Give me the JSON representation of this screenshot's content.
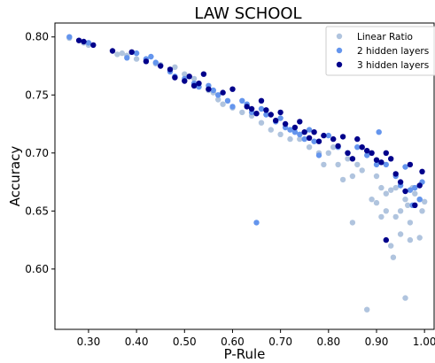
{
  "chart_data": {
    "type": "scatter",
    "title": "LAW SCHOOL",
    "xlabel": "P-Rule",
    "ylabel": "Accuracy",
    "xlim": [
      0.23,
      1.02
    ],
    "ylim": [
      0.548,
      0.812
    ],
    "xticks": [
      0.3,
      0.4,
      0.5,
      0.6,
      0.7,
      0.8,
      0.9,
      1.0
    ],
    "yticks": [
      0.6,
      0.65,
      0.7,
      0.75,
      0.8
    ],
    "grid": false,
    "legend_position": "top-right",
    "series": [
      {
        "name": "Linear Ratio",
        "color": "#b0c4de",
        "points": [
          [
            0.26,
            0.799
          ],
          [
            0.29,
            0.795
          ],
          [
            0.3,
            0.793
          ],
          [
            0.36,
            0.785
          ],
          [
            0.37,
            0.786
          ],
          [
            0.38,
            0.784
          ],
          [
            0.4,
            0.781
          ],
          [
            0.42,
            0.779
          ],
          [
            0.44,
            0.777
          ],
          [
            0.45,
            0.776
          ],
          [
            0.48,
            0.774
          ],
          [
            0.5,
            0.768
          ],
          [
            0.52,
            0.764
          ],
          [
            0.55,
            0.754
          ],
          [
            0.56,
            0.752
          ],
          [
            0.57,
            0.746
          ],
          [
            0.58,
            0.742
          ],
          [
            0.6,
            0.739
          ],
          [
            0.62,
            0.735
          ],
          [
            0.64,
            0.732
          ],
          [
            0.66,
            0.726
          ],
          [
            0.68,
            0.72
          ],
          [
            0.7,
            0.716
          ],
          [
            0.72,
            0.712
          ],
          [
            0.74,
            0.712
          ],
          [
            0.76,
            0.705
          ],
          [
            0.78,
            0.7
          ],
          [
            0.79,
            0.69
          ],
          [
            0.8,
            0.7
          ],
          [
            0.81,
            0.705
          ],
          [
            0.82,
            0.69
          ],
          [
            0.83,
            0.677
          ],
          [
            0.84,
            0.695
          ],
          [
            0.85,
            0.68
          ],
          [
            0.85,
            0.64
          ],
          [
            0.86,
            0.69
          ],
          [
            0.87,
            0.685
          ],
          [
            0.88,
            0.565
          ],
          [
            0.89,
            0.66
          ],
          [
            0.9,
            0.657
          ],
          [
            0.9,
            0.68
          ],
          [
            0.91,
            0.645
          ],
          [
            0.91,
            0.67
          ],
          [
            0.92,
            0.665
          ],
          [
            0.92,
            0.65
          ],
          [
            0.93,
            0.62
          ],
          [
            0.93,
            0.668
          ],
          [
            0.935,
            0.61
          ],
          [
            0.94,
            0.67
          ],
          [
            0.94,
            0.645
          ],
          [
            0.95,
            0.63
          ],
          [
            0.95,
            0.65
          ],
          [
            0.96,
            0.66
          ],
          [
            0.96,
            0.575
          ],
          [
            0.965,
            0.655
          ],
          [
            0.97,
            0.625
          ],
          [
            0.97,
            0.64
          ],
          [
            0.975,
            0.67
          ],
          [
            0.98,
            0.665
          ],
          [
            0.98,
            0.655
          ],
          [
            0.99,
            0.66
          ],
          [
            0.99,
            0.627
          ],
          [
            0.995,
            0.65
          ],
          [
            1.0,
            0.658
          ]
        ]
      },
      {
        "name": "2 hidden layers",
        "color": "#6495ed",
        "points": [
          [
            0.26,
            0.8
          ],
          [
            0.3,
            0.795
          ],
          [
            0.38,
            0.782
          ],
          [
            0.4,
            0.786
          ],
          [
            0.42,
            0.781
          ],
          [
            0.43,
            0.783
          ],
          [
            0.44,
            0.778
          ],
          [
            0.47,
            0.77
          ],
          [
            0.48,
            0.766
          ],
          [
            0.5,
            0.764
          ],
          [
            0.52,
            0.76
          ],
          [
            0.53,
            0.757
          ],
          [
            0.55,
            0.758
          ],
          [
            0.56,
            0.754
          ],
          [
            0.57,
            0.75
          ],
          [
            0.59,
            0.745
          ],
          [
            0.6,
            0.74
          ],
          [
            0.62,
            0.745
          ],
          [
            0.63,
            0.742
          ],
          [
            0.64,
            0.735
          ],
          [
            0.65,
            0.64
          ],
          [
            0.66,
            0.738
          ],
          [
            0.67,
            0.733
          ],
          [
            0.69,
            0.727
          ],
          [
            0.7,
            0.73
          ],
          [
            0.71,
            0.722
          ],
          [
            0.72,
            0.72
          ],
          [
            0.73,
            0.718
          ],
          [
            0.74,
            0.716
          ],
          [
            0.75,
            0.712
          ],
          [
            0.76,
            0.72
          ],
          [
            0.77,
            0.71
          ],
          [
            0.78,
            0.698
          ],
          [
            0.8,
            0.715
          ],
          [
            0.82,
            0.705
          ],
          [
            0.84,
            0.7
          ],
          [
            0.86,
            0.705
          ],
          [
            0.88,
            0.698
          ],
          [
            0.9,
            0.69
          ],
          [
            0.905,
            0.718
          ],
          [
            0.92,
            0.69
          ],
          [
            0.94,
            0.68
          ],
          [
            0.95,
            0.672
          ],
          [
            0.96,
            0.688
          ],
          [
            0.97,
            0.668
          ],
          [
            0.975,
            0.655
          ],
          [
            0.98,
            0.67
          ],
          [
            0.99,
            0.66
          ],
          [
            0.995,
            0.675
          ]
        ]
      },
      {
        "name": "3 hidden layers",
        "color": "#00008b",
        "points": [
          [
            0.28,
            0.797
          ],
          [
            0.29,
            0.796
          ],
          [
            0.31,
            0.793
          ],
          [
            0.35,
            0.788
          ],
          [
            0.39,
            0.787
          ],
          [
            0.42,
            0.779
          ],
          [
            0.45,
            0.775
          ],
          [
            0.47,
            0.772
          ],
          [
            0.48,
            0.765
          ],
          [
            0.5,
            0.762
          ],
          [
            0.51,
            0.766
          ],
          [
            0.52,
            0.758
          ],
          [
            0.53,
            0.76
          ],
          [
            0.54,
            0.768
          ],
          [
            0.55,
            0.755
          ],
          [
            0.58,
            0.752
          ],
          [
            0.6,
            0.755
          ],
          [
            0.63,
            0.74
          ],
          [
            0.64,
            0.738
          ],
          [
            0.65,
            0.734
          ],
          [
            0.66,
            0.745
          ],
          [
            0.67,
            0.737
          ],
          [
            0.68,
            0.733
          ],
          [
            0.69,
            0.728
          ],
          [
            0.7,
            0.735
          ],
          [
            0.71,
            0.725
          ],
          [
            0.73,
            0.722
          ],
          [
            0.74,
            0.727
          ],
          [
            0.75,
            0.718
          ],
          [
            0.76,
            0.713
          ],
          [
            0.77,
            0.718
          ],
          [
            0.78,
            0.71
          ],
          [
            0.79,
            0.715
          ],
          [
            0.81,
            0.712
          ],
          [
            0.82,
            0.706
          ],
          [
            0.83,
            0.714
          ],
          [
            0.84,
            0.7
          ],
          [
            0.85,
            0.695
          ],
          [
            0.86,
            0.712
          ],
          [
            0.87,
            0.705
          ],
          [
            0.88,
            0.702
          ],
          [
            0.89,
            0.7
          ],
          [
            0.9,
            0.694
          ],
          [
            0.91,
            0.692
          ],
          [
            0.92,
            0.7
          ],
          [
            0.93,
            0.695
          ],
          [
            0.94,
            0.682
          ],
          [
            0.95,
            0.675
          ],
          [
            0.96,
            0.667
          ],
          [
            0.97,
            0.69
          ],
          [
            0.98,
            0.655
          ],
          [
            0.99,
            0.672
          ],
          [
            0.995,
            0.684
          ],
          [
            0.92,
            0.625
          ]
        ]
      }
    ]
  }
}
